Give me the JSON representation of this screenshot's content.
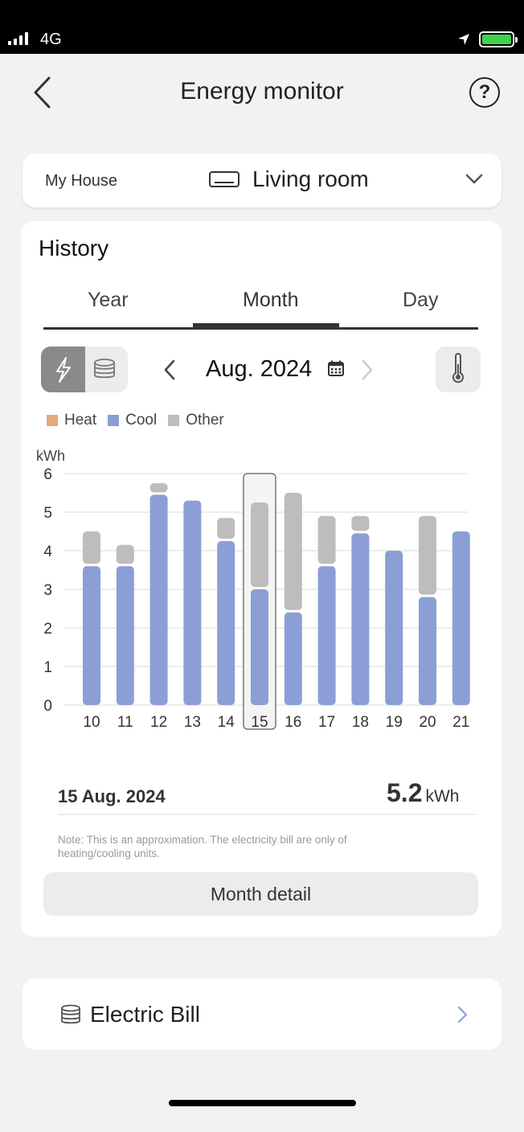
{
  "status_bar": {
    "network": "4G"
  },
  "header": {
    "title": "Energy monitor",
    "help_label": "?"
  },
  "room_selector": {
    "house": "My House",
    "room": "Living room"
  },
  "history": {
    "title": "History",
    "tabs": [
      {
        "label": "Year"
      },
      {
        "label": "Month"
      },
      {
        "label": "Day"
      }
    ],
    "selected_tab": "Month",
    "period": "Aug. 2024",
    "legend": [
      {
        "label": "Heat",
        "color": "#e8a77b"
      },
      {
        "label": "Cool",
        "color": "#8b9fd6"
      },
      {
        "label": "Other",
        "color": "#bdbdbd"
      }
    ],
    "selected": {
      "date": "15 Aug. 2024",
      "value": "5.2",
      "unit": "kWh"
    },
    "note": "Note: This is an approximation. The electricity bill are only of heating/cooling units.",
    "detail_button": "Month detail"
  },
  "chart_data": {
    "type": "bar",
    "stacked": true,
    "ylabel": "kWh",
    "ylim": [
      0,
      6
    ],
    "yticks": [
      "0",
      "1",
      "2",
      "3",
      "4",
      "5",
      "6"
    ],
    "categories": [
      "10",
      "11",
      "12",
      "13",
      "14",
      "15",
      "16",
      "17",
      "18",
      "19",
      "20",
      "21"
    ],
    "series": [
      {
        "name": "Cool",
        "color": "#8b9fd6",
        "values": [
          3.6,
          3.6,
          5.45,
          5.3,
          4.25,
          3.0,
          2.4,
          3.6,
          4.45,
          4.0,
          2.8,
          4.5
        ]
      },
      {
        "name": "Other",
        "color": "#bdbdbd",
        "values": [
          0.9,
          0.55,
          0.3,
          0,
          0.6,
          2.25,
          3.1,
          1.3,
          0.45,
          0,
          2.1,
          0
        ]
      }
    ],
    "highlighted_category": "15",
    "grid": true
  },
  "electric_bill": {
    "label": "Electric Bill"
  }
}
